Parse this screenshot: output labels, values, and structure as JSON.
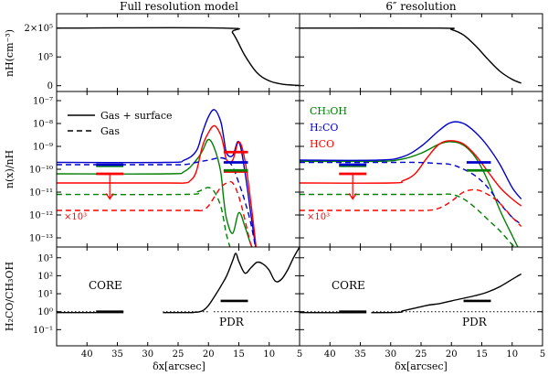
{
  "chart_data": {
    "type": "line",
    "column_titles": [
      "Full resolution model",
      "6″ resolution"
    ],
    "xlabel": "δx[arcsec]",
    "x_ticks": [
      40,
      35,
      30,
      25,
      20,
      15,
      10,
      5
    ],
    "xlim": [
      45,
      5
    ],
    "rows": {
      "density": {
        "ylabel": "nH(cm⁻³)",
        "ylim": [
          -0.2,
          2.5
        ],
        "ticks": [
          {
            "v": 2,
            "label": "2×10⁵"
          },
          {
            "v": 1,
            "label": "10⁵"
          },
          {
            "v": 0,
            "label": "0"
          }
        ]
      },
      "abundance": {
        "ylabel": "n(x)/nH",
        "ylim": [
          -13.4,
          -6.6
        ],
        "ticks": [
          {
            "v": -7,
            "label": "10⁻⁷"
          },
          {
            "v": -8,
            "label": "10⁻⁸"
          },
          {
            "v": -9,
            "label": "10⁻⁹"
          },
          {
            "v": -10,
            "label": "10⁻¹⁰"
          },
          {
            "v": -11,
            "label": "10⁻¹¹"
          },
          {
            "v": -12,
            "label": "10⁻¹²"
          },
          {
            "v": -13,
            "label": "10⁻¹³"
          }
        ]
      },
      "ratio": {
        "ylabel": "H₂CO/CH₃OH",
        "ylim": [
          -1.9,
          3.6
        ],
        "ticks": [
          {
            "v": 3,
            "label": "10³"
          },
          {
            "v": 2,
            "label": "10²"
          },
          {
            "v": 1,
            "label": "10¹"
          },
          {
            "v": 0,
            "label": "10⁰"
          },
          {
            "v": -1,
            "label": "10⁻¹"
          }
        ]
      }
    },
    "legend": {
      "styles": [
        {
          "label": "Gas + surface",
          "style": "solid"
        },
        {
          "label": "Gas",
          "style": "dashed"
        }
      ],
      "species": [
        {
          "label": "CH₃OH",
          "color": "#008000"
        },
        {
          "label": "H₂CO",
          "color": "#0000cc"
        },
        {
          "label": "HCO",
          "color": "#ff0000"
        }
      ]
    },
    "annotations": {
      "core": "CORE",
      "pdr": "PDR",
      "scale": "×10³"
    },
    "panels": [
      {
        "density": {
          "x": [
            45,
            17.5,
            16,
            14,
            12,
            10,
            8,
            6,
            5
          ],
          "y": [
            2,
            2,
            1.83,
            1.05,
            0.45,
            0.17,
            0.06,
            0.02,
            0.01
          ]
        },
        "series": [
          {
            "species": "CH3OH",
            "style": "solid",
            "x": [
              45,
              27,
              24,
              22,
              21,
              20,
              19,
              18,
              17.5,
              17,
              16,
              15,
              14,
              13,
              12
            ],
            "y": [
              -10.2,
              -10.2,
              -10.1,
              -9.6,
              -9.2,
              -8.7,
              -9.1,
              -10.1,
              -11.3,
              -12.2,
              -12.8,
              -11.9,
              -12.5,
              -13.3,
              -13.8
            ]
          },
          {
            "species": "H2CO",
            "style": "solid",
            "x": [
              45,
              27,
              24,
              22,
              21,
              20,
              19,
              18,
              17.5,
              17,
              16,
              15,
              14,
              13,
              12
            ],
            "y": [
              -9.7,
              -9.7,
              -9.6,
              -9.2,
              -8.4,
              -7.7,
              -7.4,
              -7.9,
              -8.6,
              -9.3,
              -9.4,
              -8.8,
              -10.1,
              -12.0,
              -13.8
            ]
          },
          {
            "species": "HCO",
            "style": "solid",
            "x": [
              45,
              27,
              24,
              23,
              22,
              21,
              20,
              19,
              18,
              17.5,
              17,
              16,
              15,
              14,
              13,
              12
            ],
            "y": [
              -10.6,
              -10.6,
              -10.6,
              -10.5,
              -10.1,
              -9.0,
              -8.4,
              -8.1,
              -8.5,
              -9.0,
              -9.6,
              -9.6,
              -8.8,
              -9.6,
              -11.5,
              -13.8
            ]
          },
          {
            "species": "CH3OH",
            "style": "dashed",
            "x": [
              45,
              24,
              22,
              21,
              20,
              19,
              18,
              17.5,
              17,
              16
            ],
            "y": [
              -11.1,
              -11.1,
              -11.0,
              -10.9,
              -10.8,
              -11.0,
              -11.6,
              -12.2,
              -12.9,
              -13.8
            ]
          },
          {
            "species": "H2CO",
            "style": "dashed",
            "x": [
              45,
              27,
              24,
              22,
              20,
              18,
              17,
              16,
              15,
              14,
              13,
              12
            ],
            "y": [
              -9.8,
              -9.8,
              -9.8,
              -9.7,
              -9.6,
              -9.5,
              -9.6,
              -9.9,
              -10.6,
              -11.4,
              -12.4,
              -13.8
            ]
          },
          {
            "species": "HCO",
            "style": "dashed",
            "x": [
              45,
              24,
              22,
              21,
              20,
              19,
              18,
              17,
              16,
              15,
              14,
              13,
              12
            ],
            "y": [
              -11.8,
              -11.8,
              -11.8,
              -11.8,
              -11.6,
              -11.2,
              -10.8,
              -10.6,
              -10.6,
              -11.2,
              -12.2,
              -13.3,
              -13.8
            ]
          }
        ],
        "ratio": {
          "solid": {
            "x": [
              45,
              25,
              22.5,
              21,
              20,
              19,
              18,
              17,
              16,
              15.5,
              15,
              14,
              13,
              12,
              11,
              10,
              9,
              8,
              7,
              6,
              5
            ],
            "y": [
              -0.05,
              -0.05,
              -0.04,
              0.05,
              0.35,
              0.85,
              1.4,
              2.0,
              2.85,
              3.25,
              2.8,
              2.15,
              2.45,
              2.75,
              2.65,
              2.3,
              1.7,
              1.8,
              2.3,
              3.0,
              3.6
            ]
          },
          "gaps": [
            [
              34,
              27.5
            ],
            [
              19.8,
              19.4
            ]
          ]
        },
        "core_bar": {
          "x1": 38.5,
          "x2": 34,
          "ratio_y": 0
        },
        "pdr_bar": {
          "x1": 18,
          "x2": 13.5,
          "ratio_y": 0.6
        },
        "obs": [
          {
            "color": "#ff0000",
            "x1": 38.5,
            "x2": 34,
            "y": -10.2,
            "arrow_to": -11.3
          },
          {
            "color": "#008000",
            "x1": 38.5,
            "x2": 34,
            "y": -9.85
          },
          {
            "color": "#0000cc",
            "x1": 38.5,
            "x2": 34,
            "y": -9.8
          },
          {
            "color": "#ff0000",
            "x1": 17.5,
            "x2": 13.5,
            "y": -9.25
          },
          {
            "color": "#ff0000",
            "x1": 17.5,
            "x2": 13.5,
            "y": -10.1
          },
          {
            "color": "#0000cc",
            "x1": 17.5,
            "x2": 13.5,
            "y": -9.7
          },
          {
            "color": "#008000",
            "x1": 17.5,
            "x2": 13.5,
            "y": -10.05
          }
        ]
      },
      {
        "density": {
          "x": [
            45,
            22,
            20,
            18,
            16,
            14,
            12,
            10,
            8.5
          ],
          "y": [
            2,
            2,
            1.95,
            1.76,
            1.38,
            0.92,
            0.5,
            0.22,
            0.09
          ]
        },
        "series": [
          {
            "species": "CH3OH",
            "style": "solid",
            "x": [
              45,
              32,
              28,
              25,
              22,
              20,
              18,
              16,
              14,
              12,
              10,
              8.5
            ],
            "y": [
              -9.65,
              -9.65,
              -9.55,
              -9.3,
              -8.9,
              -8.8,
              -8.95,
              -9.5,
              -10.5,
              -11.8,
              -12.9,
              -13.7
            ]
          },
          {
            "species": "H2CO",
            "style": "solid",
            "x": [
              45,
              32,
              28,
              25,
              22,
              20,
              18,
              16,
              14,
              12,
              10,
              8.5
            ],
            "y": [
              -9.6,
              -9.6,
              -9.45,
              -9.0,
              -8.3,
              -7.95,
              -8.0,
              -8.4,
              -9.0,
              -9.8,
              -10.8,
              -11.3
            ]
          },
          {
            "species": "HCO",
            "style": "solid",
            "x": [
              45,
              30,
              28,
              26,
              24,
              22,
              20,
              18,
              16,
              14,
              12,
              10,
              8.5
            ],
            "y": [
              -10.6,
              -10.6,
              -10.5,
              -10.2,
              -9.5,
              -8.9,
              -8.75,
              -8.9,
              -9.4,
              -10.1,
              -10.8,
              -11.3,
              -11.6
            ]
          },
          {
            "species": "CH3OH",
            "style": "dashed",
            "x": [
              45,
              28,
              24,
              22,
              20,
              18,
              16,
              14,
              12,
              10,
              8.5
            ],
            "y": [
              -11.1,
              -11.1,
              -11.1,
              -11.1,
              -11.1,
              -11.3,
              -11.7,
              -12.2,
              -12.7,
              -13.3,
              -13.7
            ]
          },
          {
            "species": "H2CO",
            "style": "dashed",
            "x": [
              45,
              30,
              26,
              22,
              20,
              18,
              16,
              14,
              12,
              10,
              8.5
            ],
            "y": [
              -9.7,
              -9.7,
              -9.7,
              -9.75,
              -9.8,
              -10.0,
              -10.3,
              -10.8,
              -11.5,
              -12.1,
              -12.4
            ]
          },
          {
            "species": "HCO",
            "style": "dashed",
            "x": [
              45,
              28,
              24,
              22,
              20,
              18,
              16,
              14,
              12,
              10,
              8.5
            ],
            "y": [
              -11.8,
              -11.8,
              -11.8,
              -11.7,
              -11.4,
              -11.0,
              -10.9,
              -11.1,
              -11.5,
              -12.1,
              -12.5
            ]
          }
        ],
        "ratio": {
          "solid": {
            "x": [
              45,
              30,
              28,
              26,
              24,
              22,
              20,
              18,
              16,
              14,
              12,
              10,
              8.5
            ],
            "y": [
              -0.05,
              -0.05,
              0.05,
              0.2,
              0.35,
              0.45,
              0.6,
              0.75,
              0.9,
              1.1,
              1.4,
              1.8,
              2.1
            ]
          },
          "gaps": [
            [
              34,
              33.2
            ]
          ]
        },
        "core_bar": {
          "x1": 38.5,
          "x2": 34,
          "ratio_y": 0
        },
        "pdr_bar": {
          "x1": 18,
          "x2": 13.5,
          "ratio_y": 0.6
        },
        "obs": [
          {
            "color": "#ff0000",
            "x1": 38.5,
            "x2": 34,
            "y": -10.2,
            "arrow_to": -11.3
          },
          {
            "color": "#008000",
            "x1": 38.5,
            "x2": 34,
            "y": -9.85
          },
          {
            "color": "#0000cc",
            "x1": 38.5,
            "x2": 34,
            "y": -9.8
          },
          {
            "color": "#0000cc",
            "x1": 17.5,
            "x2": 13.5,
            "y": -9.7
          },
          {
            "color": "#008000",
            "x1": 17.5,
            "x2": 13.5,
            "y": -10.05
          }
        ]
      }
    ]
  }
}
